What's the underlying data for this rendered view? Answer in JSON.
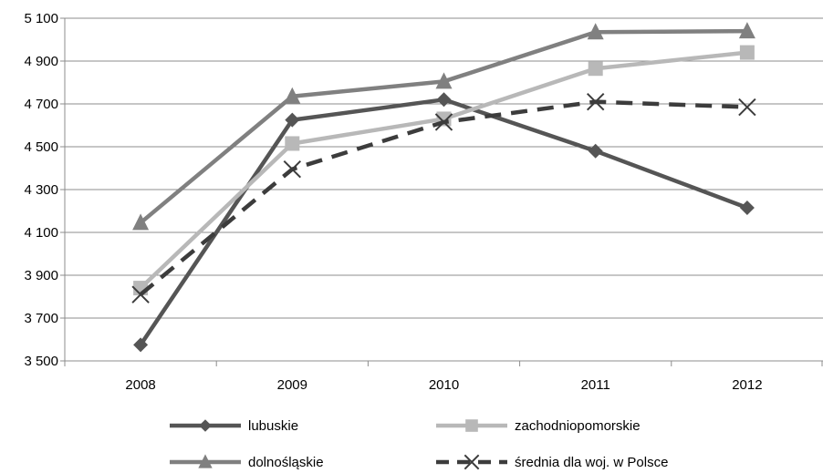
{
  "chart_data": {
    "type": "line",
    "title": "",
    "xlabel": "",
    "ylabel": "",
    "x": [
      "2008",
      "2009",
      "2010",
      "2011",
      "2012"
    ],
    "ylim": [
      3500,
      5100
    ],
    "yticks": [
      3500,
      3700,
      3900,
      4100,
      4300,
      4500,
      4700,
      4900,
      5100
    ],
    "ytick_labels": [
      "3 500",
      "3 700",
      "3 900",
      "4 100",
      "4 300",
      "4 500",
      "4 700",
      "4 900",
      "5 100"
    ],
    "grid": "horizontal",
    "legend_position": "bottom",
    "series": [
      {
        "name": "lubuskie",
        "values": [
          3575,
          4625,
          4720,
          4480,
          4215
        ],
        "color": "#555555",
        "marker": "diamond",
        "dash": "solid"
      },
      {
        "name": "zachodniopomorskie",
        "values": [
          3840,
          4515,
          4630,
          4865,
          4940
        ],
        "color": "#b8b8b8",
        "marker": "square",
        "dash": "solid"
      },
      {
        "name": "dolnośląskie",
        "values": [
          4145,
          4735,
          4805,
          5035,
          5040
        ],
        "color": "#808080",
        "marker": "triangle",
        "dash": "solid"
      },
      {
        "name": "średnia dla woj. w Polsce",
        "values": [
          3810,
          4395,
          4615,
          4710,
          4685
        ],
        "color": "#3c3c3c",
        "marker": "x",
        "dash": "dashed"
      }
    ]
  }
}
